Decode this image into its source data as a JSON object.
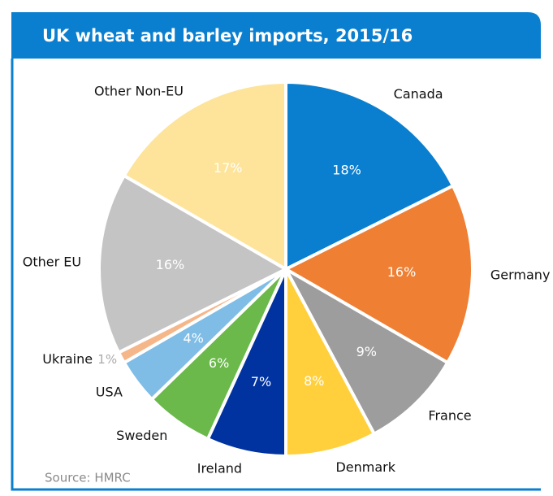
{
  "chart_data": {
    "type": "pie",
    "title": "UK wheat and barley imports, 2015/16",
    "source": "Source: HMRC",
    "categories": [
      "Canada",
      "Germany",
      "France",
      "Denmark",
      "Ireland",
      "Sweden",
      "USA",
      "Ukraine",
      "Other EU",
      "Other Non-EU"
    ],
    "values": [
      18,
      16,
      9,
      8,
      7,
      6,
      4,
      1,
      16,
      17
    ],
    "value_labels": [
      "18%",
      "16%",
      "9%",
      "8%",
      "7%",
      "6%",
      "4%",
      "1%",
      "16%",
      "17%"
    ],
    "colors": [
      "#0a7fd0",
      "#ee7f33",
      "#9d9d9d",
      "#ffd03c",
      "#0033a0",
      "#6ab94a",
      "#7fbde6",
      "#f5b68a",
      "#c4c4c4",
      "#fde49a"
    ]
  }
}
